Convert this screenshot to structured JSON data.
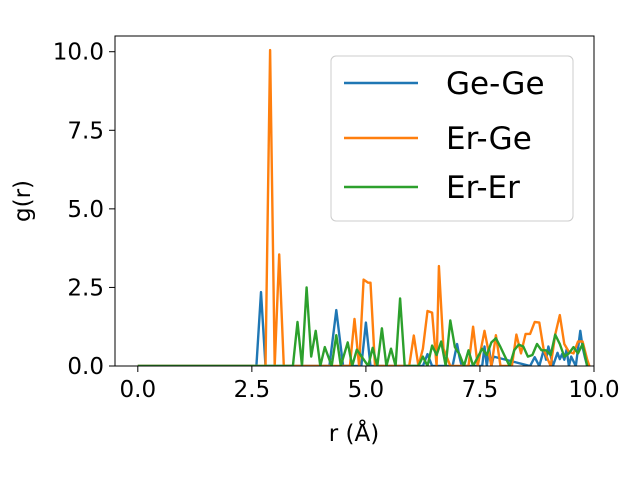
{
  "chart_data": {
    "type": "line",
    "title": "",
    "xlabel": "r (Å)",
    "ylabel": "g(r)",
    "xlim": [
      -0.5,
      10.0
    ],
    "ylim": [
      0.0,
      10.5
    ],
    "xticks": [
      "0.0",
      "2.5",
      "5.0",
      "7.5",
      "10.0"
    ],
    "xtick_values": [
      0,
      2.5,
      5,
      7.5,
      10
    ],
    "yticks": [
      "0.0",
      "2.5",
      "5.0",
      "7.5",
      "10.0"
    ],
    "ytick_values": [
      0,
      2.5,
      5,
      7.5,
      10
    ],
    "grid": false,
    "legend_position": "upper-right",
    "series": [
      {
        "name": "Ge-Ge",
        "color": "#1f77b4",
        "x": [
          0,
          2.6,
          2.7,
          2.8,
          4.2,
          4.35,
          4.5,
          4.9,
          5.0,
          5.1,
          6.25,
          6.35,
          6.45,
          6.9,
          7.0,
          7.05,
          7.1,
          7.55,
          7.6,
          7.65,
          7.7,
          7.75,
          7.8,
          8.6,
          8.7,
          8.8,
          8.9,
          8.95,
          9.0,
          9.05,
          9.1,
          9.2,
          9.25,
          9.3,
          9.35,
          9.4,
          9.45,
          9.5,
          9.6,
          9.7,
          9.75,
          9.8,
          9.85
        ],
        "y": [
          0,
          0,
          2.35,
          0,
          0,
          1.78,
          0,
          0,
          1.38,
          0,
          0,
          0.38,
          0,
          0,
          0.7,
          0.3,
          0,
          0,
          0.62,
          0,
          0.55,
          0,
          0.3,
          0,
          0.28,
          0,
          0.52,
          0.2,
          0.62,
          0.32,
          0,
          0.42,
          0.22,
          0.38,
          0.2,
          0.52,
          0,
          0.3,
          0,
          1.12,
          0.6,
          0.28,
          0
        ]
      },
      {
        "name": "Er-Ge",
        "color": "#ff7f0e",
        "x": [
          0,
          2.8,
          2.9,
          3.0,
          3.1,
          3.2,
          4.65,
          4.75,
          4.85,
          4.95,
          5.05,
          5.1,
          5.2,
          5.95,
          6.05,
          6.15,
          6.25,
          6.35,
          6.45,
          6.55,
          6.6,
          6.7,
          6.85,
          7.25,
          7.35,
          7.45,
          7.6,
          7.75,
          7.85,
          7.95,
          8.2,
          8.3,
          8.4,
          8.5,
          8.6,
          8.7,
          8.8,
          8.9,
          9.05,
          9.15,
          9.25,
          9.35,
          9.45,
          9.55,
          9.65,
          9.75,
          9.85,
          9.9
        ],
        "y": [
          0,
          0,
          10.05,
          0,
          3.55,
          0,
          0,
          1.5,
          0,
          2.75,
          2.65,
          2.65,
          0,
          0,
          0.97,
          0,
          0.55,
          1.75,
          1.7,
          0,
          3.18,
          0.55,
          0,
          0,
          1.25,
          0,
          1.12,
          0,
          0.98,
          0,
          0,
          1.0,
          0.4,
          1.02,
          1.02,
          1.4,
          1.38,
          0.5,
          0,
          1.0,
          1.62,
          0.7,
          0.45,
          0.4,
          0.78,
          0.78,
          0.2,
          0
        ]
      },
      {
        "name": "Er-Er",
        "color": "#2ca02c",
        "x": [
          0,
          3.4,
          3.5,
          3.6,
          3.7,
          3.8,
          3.9,
          4.0,
          4.1,
          4.25,
          4.35,
          4.45,
          4.6,
          4.7,
          4.8,
          5.05,
          5.15,
          5.25,
          5.35,
          5.45,
          5.55,
          5.65,
          5.75,
          5.85,
          6.15,
          6.25,
          6.35,
          6.45,
          6.55,
          6.65,
          6.75,
          6.85,
          6.95,
          7.05,
          7.15,
          7.25,
          7.35,
          7.45,
          7.55,
          7.65,
          7.75,
          7.85,
          7.95,
          8.05,
          8.15,
          8.25,
          8.35,
          8.45,
          8.55,
          8.65,
          8.75,
          8.85,
          8.95,
          9.05,
          9.15,
          9.25,
          9.35,
          9.45,
          9.55,
          9.65,
          9.75,
          9.85
        ],
        "y": [
          0,
          0,
          1.4,
          0,
          2.5,
          0.3,
          1.12,
          0,
          0.6,
          0,
          0.98,
          0,
          0.75,
          0,
          0.52,
          0,
          0.58,
          0,
          1.2,
          0,
          0.55,
          0,
          2.15,
          0,
          0,
          0.3,
          0,
          0.65,
          0.35,
          0.78,
          0,
          1.45,
          0.6,
          0.38,
          0,
          0.5,
          0,
          0.28,
          0.55,
          0.35,
          0.75,
          0.88,
          0.6,
          0.3,
          0,
          0.5,
          0.68,
          0.62,
          0.3,
          0.35,
          0.7,
          0.5,
          0.5,
          0.35,
          1.0,
          0.7,
          0.3,
          0.4,
          0.6,
          0.4,
          0.7,
          0
        ]
      }
    ]
  }
}
